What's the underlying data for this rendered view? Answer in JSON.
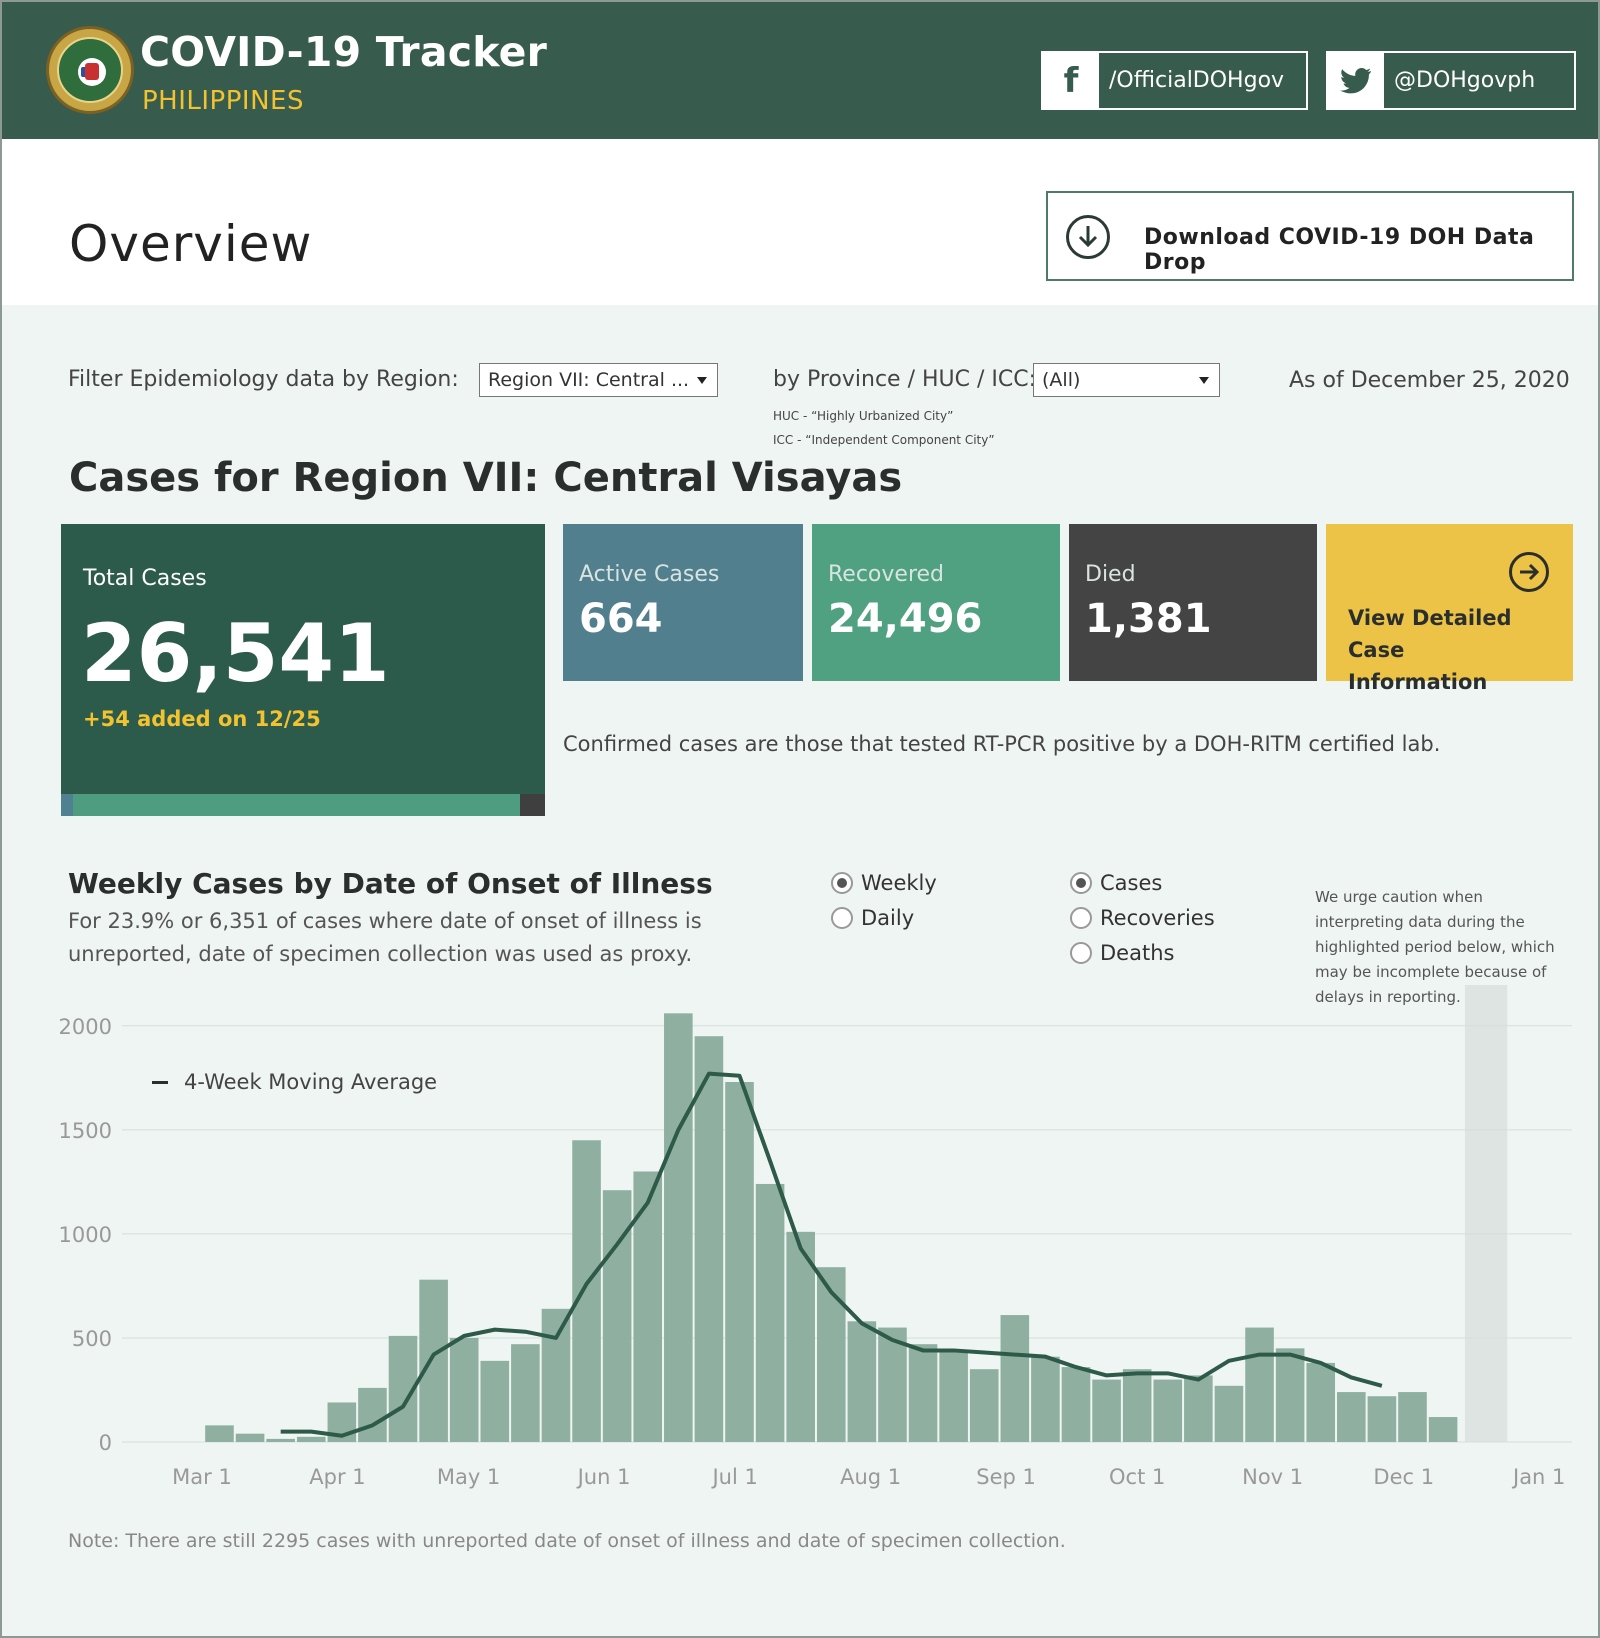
{
  "header": {
    "title": "COVID-19 Tracker",
    "subtitle": "PHILIPPINES",
    "facebook": "/OfficialDOHgov",
    "twitter": "@DOHgovph"
  },
  "overview": {
    "title": "Overview",
    "download_label": "Download COVID-19 DOH Data Drop"
  },
  "filters": {
    "region_label": "Filter Epidemiology data by Region:",
    "region_value": "Region VII: Central ...",
    "province_label": "by Province / HUC / ICC:",
    "province_value": "(All)",
    "huc_note": "HUC - “Highly Urbanized City”",
    "icc_note": "ICC - “Independent Component City”",
    "as_of": "As of December 25, 2020"
  },
  "region_title": "Cases for Region VII: Central Visayas",
  "kpi": {
    "total_label": "Total Cases",
    "total_value": "26,541",
    "total_added": "+54 added on 12/25",
    "active_label": "Active Cases",
    "active_value": "664",
    "recovered_label": "Recovered",
    "recovered_value": "24,496",
    "died_label": "Died",
    "died_value": "1,381",
    "detail_label": "View Detailed Case Information",
    "confirm_note": "Confirmed cases are those that tested RT-PCR positive by a DOH-RITM certified lab."
  },
  "weekly": {
    "title": "Weekly Cases by Date of Onset of Illness",
    "desc": "For 23.9% or 6,351 of cases where date of onset of illness is unreported, date of specimen collection was used as proxy.",
    "period_options": [
      "Weekly",
      "Daily"
    ],
    "period_selected": "Weekly",
    "metric_options": [
      "Cases",
      "Recoveries",
      "Deaths"
    ],
    "metric_selected": "Cases",
    "caution": "We urge caution when interpreting data during the highlighted period below, which may be incomplete because of delays in reporting.",
    "legend": "4-Week Moving Average",
    "note": "Note: There are still 2295 cases with unreported date of onset of illness and date of specimen collection."
  },
  "colors": {
    "header_bg": "#375b4c",
    "accent_yellow": "#f2c230",
    "total_card": "#2c5b4c",
    "active_card": "#517f8e",
    "recovered_card": "#50a181",
    "died_card": "#444444",
    "detail_card": "#ecc346",
    "bar": "#8fb0a1",
    "line": "#2e5a49",
    "highlight": "#dde4e2"
  },
  "chart_data": {
    "type": "bar",
    "title": "Weekly Cases by Date of Onset of Illness",
    "ylim": [
      0,
      2100
    ],
    "yticks": [
      0,
      500,
      1000,
      1500,
      2000
    ],
    "ytick_labels": [
      "0",
      "500",
      "1000",
      "1500",
      "2000"
    ],
    "x_tick_labels": [
      "Mar 1",
      "Apr 1",
      "May 1",
      "Jun 1",
      "Jul 1",
      "Aug 1",
      "Sep 1",
      "Oct 1",
      "Nov 1",
      "Dec 1",
      "Jan 1"
    ],
    "x_tick_days": [
      0,
      31,
      61,
      92,
      122,
      153,
      184,
      214,
      245,
      275,
      306
    ],
    "bar_days": [
      4,
      11,
      18,
      25,
      32,
      39,
      46,
      53,
      60,
      67,
      74,
      81,
      88,
      95,
      102,
      109,
      116,
      123,
      130,
      137,
      144,
      151,
      158,
      165,
      172,
      179,
      186,
      193,
      200,
      207,
      214,
      221,
      228,
      235,
      242,
      249,
      256,
      263,
      270,
      277,
      284,
      291,
      298
    ],
    "series": [
      {
        "name": "Weekly Cases",
        "values": [
          80,
          40,
          15,
          25,
          190,
          260,
          510,
          780,
          500,
          390,
          470,
          640,
          1450,
          1210,
          1300,
          2060,
          1950,
          1730,
          1240,
          1010,
          840,
          580,
          550,
          470,
          430,
          350,
          610,
          410,
          360,
          300,
          350,
          300,
          320,
          270,
          550,
          450,
          380,
          240,
          220,
          240,
          120,
          0,
          0
        ]
      },
      {
        "name": "4-Week Moving Average",
        "values": [
          null,
          null,
          50,
          50,
          30,
          80,
          170,
          420,
          510,
          540,
          530,
          500,
          760,
          950,
          1150,
          1500,
          1770,
          1760,
          1350,
          930,
          720,
          570,
          490,
          440,
          440,
          430,
          420,
          410,
          360,
          320,
          330,
          330,
          300,
          390,
          420,
          420,
          380,
          310,
          270,
          null,
          null,
          null,
          null
        ]
      }
    ],
    "highlight_range_days": [
      289,
      298
    ],
    "legend": [
      "4-Week Moving Average"
    ]
  }
}
